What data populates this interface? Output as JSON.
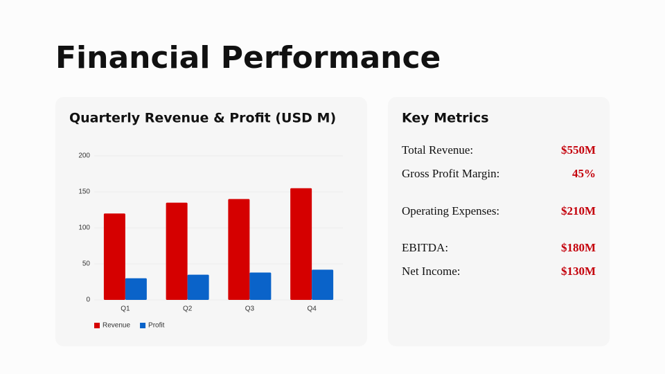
{
  "title": "Financial Performance",
  "chart_data": {
    "type": "bar",
    "title": "Quarterly Revenue & Profit (USD M)",
    "categories": [
      "Q1",
      "Q2",
      "Q3",
      "Q4"
    ],
    "series": [
      {
        "name": "Revenue",
        "color": "#d50000",
        "values": [
          120,
          135,
          140,
          155
        ]
      },
      {
        "name": "Profit",
        "color": "#0a63c9",
        "values": [
          30,
          35,
          38,
          42
        ]
      }
    ],
    "ylim": [
      0,
      200
    ],
    "yticks": [
      0,
      50,
      100,
      150,
      200
    ],
    "grid": true
  },
  "metrics": {
    "title": "Key Metrics",
    "items": [
      {
        "label": "Total Revenue:",
        "value": "$550M"
      },
      {
        "label": "Gross Profit Margin:",
        "value": "45%"
      },
      {
        "label": "Operating Expenses:",
        "value": "$210M"
      },
      {
        "label": "EBITDA:",
        "value": "$180M"
      },
      {
        "label": "Net Income:",
        "value": "$130M"
      }
    ]
  }
}
